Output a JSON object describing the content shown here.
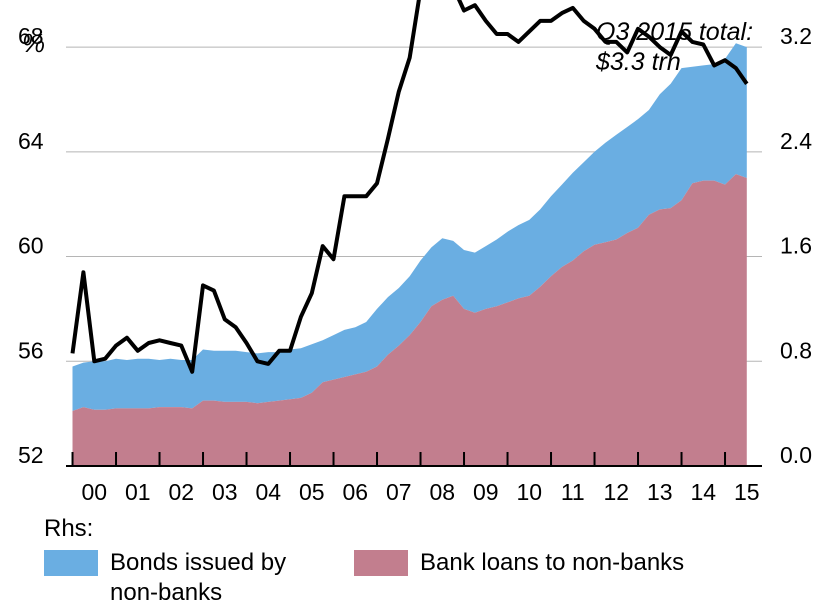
{
  "chart_data": {
    "type": "area",
    "left_axis": {
      "unit_label": "%",
      "ticks": [
        52,
        56,
        60,
        64,
        68
      ],
      "range": [
        52,
        69.8
      ]
    },
    "right_axis": {
      "ticks": [
        "0.0",
        "0.8",
        "1.6",
        "2.4",
        "3.2"
      ],
      "range": [
        0,
        3.56
      ]
    },
    "x_axis": {
      "tick_labels": [
        "00",
        "01",
        "02",
        "03",
        "04",
        "05",
        "06",
        "07",
        "08",
        "09",
        "10",
        "11",
        "12",
        "13",
        "14",
        "15"
      ],
      "range": [
        1999.85,
        2015.85
      ]
    },
    "annotation": [
      "Q3 2015 total:",
      "$3.3 trn"
    ],
    "legend_title": "Rhs:",
    "colors": {
      "bonds": "#6aaee2",
      "loans": "#c27e8e",
      "line": "#000000"
    },
    "series": [
      {
        "name": "Bank loans to non-banks",
        "axis": "right",
        "stack": true,
        "x": [
          2000.0,
          2000.25,
          2000.5,
          2000.75,
          2001.0,
          2001.25,
          2001.5,
          2001.75,
          2002.0,
          2002.25,
          2002.5,
          2002.75,
          2003.0,
          2003.25,
          2003.5,
          2003.75,
          2004.0,
          2004.25,
          2004.5,
          2004.75,
          2005.0,
          2005.25,
          2005.5,
          2005.75,
          2006.0,
          2006.25,
          2006.5,
          2006.75,
          2007.0,
          2007.25,
          2007.5,
          2007.75,
          2008.0,
          2008.25,
          2008.5,
          2008.75,
          2009.0,
          2009.25,
          2009.5,
          2009.75,
          2010.0,
          2010.25,
          2010.5,
          2010.75,
          2011.0,
          2011.25,
          2011.5,
          2011.75,
          2012.0,
          2012.25,
          2012.5,
          2012.75,
          2013.0,
          2013.25,
          2013.5,
          2013.75,
          2014.0,
          2014.25,
          2014.5,
          2014.75,
          2015.0,
          2015.25,
          2015.5
        ],
        "values": [
          0.42,
          0.45,
          0.43,
          0.43,
          0.44,
          0.44,
          0.44,
          0.44,
          0.45,
          0.45,
          0.45,
          0.44,
          0.5,
          0.5,
          0.49,
          0.49,
          0.49,
          0.48,
          0.49,
          0.5,
          0.51,
          0.52,
          0.56,
          0.64,
          0.66,
          0.68,
          0.7,
          0.72,
          0.76,
          0.85,
          0.92,
          1.0,
          1.1,
          1.22,
          1.27,
          1.3,
          1.2,
          1.17,
          1.2,
          1.22,
          1.25,
          1.28,
          1.3,
          1.37,
          1.45,
          1.52,
          1.57,
          1.64,
          1.69,
          1.71,
          1.73,
          1.78,
          1.82,
          1.92,
          1.96,
          1.97,
          2.03,
          2.16,
          2.18,
          2.18,
          2.15,
          2.23,
          2.2
        ]
      },
      {
        "name": "Bonds issued by non-banks",
        "axis": "right",
        "stack": true,
        "x": [
          2000.0,
          2000.25,
          2000.5,
          2000.75,
          2001.0,
          2001.25,
          2001.5,
          2001.75,
          2002.0,
          2002.25,
          2002.5,
          2002.75,
          2003.0,
          2003.25,
          2003.5,
          2003.75,
          2004.0,
          2004.25,
          2004.5,
          2004.75,
          2005.0,
          2005.25,
          2005.5,
          2005.75,
          2006.0,
          2006.25,
          2006.5,
          2006.75,
          2007.0,
          2007.25,
          2007.5,
          2007.75,
          2008.0,
          2008.25,
          2008.5,
          2008.75,
          2009.0,
          2009.25,
          2009.5,
          2009.75,
          2010.0,
          2010.25,
          2010.5,
          2010.75,
          2011.0,
          2011.25,
          2011.5,
          2011.75,
          2012.0,
          2012.25,
          2012.5,
          2012.75,
          2013.0,
          2013.25,
          2013.5,
          2013.75,
          2014.0,
          2014.25,
          2014.5,
          2014.75,
          2015.0,
          2015.25,
          2015.5
        ],
        "values": [
          0.34,
          0.34,
          0.37,
          0.37,
          0.38,
          0.37,
          0.38,
          0.38,
          0.36,
          0.37,
          0.36,
          0.37,
          0.39,
          0.38,
          0.39,
          0.39,
          0.38,
          0.38,
          0.38,
          0.37,
          0.38,
          0.38,
          0.37,
          0.32,
          0.34,
          0.36,
          0.36,
          0.38,
          0.44,
          0.44,
          0.44,
          0.45,
          0.47,
          0.45,
          0.47,
          0.42,
          0.45,
          0.46,
          0.48,
          0.51,
          0.54,
          0.56,
          0.58,
          0.59,
          0.61,
          0.63,
          0.67,
          0.68,
          0.71,
          0.76,
          0.8,
          0.81,
          0.83,
          0.8,
          0.88,
          0.95,
          1.01,
          0.89,
          0.88,
          0.89,
          0.96,
          1.0,
          1.0
        ]
      },
      {
        "name": "",
        "axis": "left",
        "type": "line",
        "x": [
          2000.0,
          2000.25,
          2000.5,
          2000.75,
          2001.0,
          2001.25,
          2001.5,
          2001.75,
          2002.0,
          2002.25,
          2002.5,
          2002.75,
          2003.0,
          2003.25,
          2003.5,
          2003.75,
          2004.0,
          2004.25,
          2004.5,
          2004.75,
          2005.0,
          2005.25,
          2005.5,
          2005.75,
          2006.0,
          2006.25,
          2006.5,
          2006.75,
          2007.0,
          2007.25,
          2007.5,
          2007.75,
          2008.0,
          2008.25,
          2008.5,
          2008.75,
          2009.0,
          2009.25,
          2009.5,
          2009.75,
          2010.0,
          2010.25,
          2010.5,
          2010.75,
          2011.0,
          2011.25,
          2011.5,
          2011.75,
          2012.0,
          2012.25,
          2012.5,
          2012.75,
          2013.0,
          2013.25,
          2013.5,
          2013.75,
          2014.0,
          2014.25,
          2014.5,
          2014.75,
          2015.0,
          2015.25,
          2015.5
        ],
        "values": [
          56.3,
          59.4,
          56.0,
          56.1,
          56.6,
          56.9,
          56.4,
          56.7,
          56.8,
          56.7,
          56.6,
          55.6,
          58.9,
          58.7,
          57.6,
          57.3,
          56.7,
          56.0,
          55.9,
          56.4,
          56.4,
          57.7,
          58.6,
          60.4,
          59.9,
          62.3,
          62.3,
          62.3,
          62.8,
          64.5,
          66.3,
          67.6,
          70.2,
          71.1,
          71.5,
          70.3,
          69.4,
          69.6,
          69.0,
          68.5,
          68.5,
          68.2,
          68.6,
          69.0,
          69.0,
          69.3,
          69.5,
          69.0,
          68.7,
          68.2,
          68.2,
          67.8,
          68.7,
          68.4,
          68.0,
          67.7,
          68.6,
          68.2,
          68.1,
          67.3,
          67.5,
          67.2,
          66.6
        ]
      }
    ]
  }
}
